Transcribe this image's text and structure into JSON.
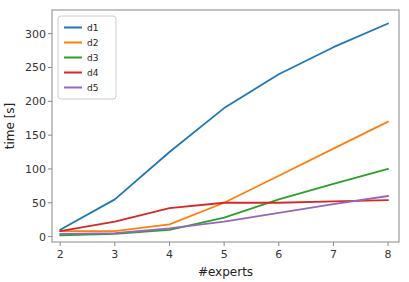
{
  "chart_data": {
    "type": "line",
    "xlabel": "#experts",
    "ylabel": "time [s]",
    "x": [
      2,
      3,
      4,
      5,
      6,
      7,
      8
    ],
    "series": [
      {
        "name": "d1",
        "color": "#1f77b4",
        "values": [
          10,
          55,
          125,
          190,
          240,
          280,
          315
        ]
      },
      {
        "name": "d2",
        "color": "#ff7f0e",
        "values": [
          8,
          8,
          18,
          50,
          90,
          130,
          170
        ]
      },
      {
        "name": "d3",
        "color": "#2ca02c",
        "values": [
          2,
          4,
          10,
          28,
          55,
          78,
          100
        ]
      },
      {
        "name": "d4",
        "color": "#d62728",
        "values": [
          8,
          22,
          42,
          50,
          50,
          52,
          54
        ]
      },
      {
        "name": "d5",
        "color": "#9467bd",
        "values": [
          4,
          5,
          12,
          22,
          35,
          48,
          60
        ]
      }
    ],
    "xlim": [
      1.85,
      8.2
    ],
    "ylim": [
      -8,
      335
    ],
    "xticks": [
      2,
      3,
      4,
      5,
      6,
      7,
      8
    ],
    "yticks": [
      0,
      50,
      100,
      150,
      200,
      250,
      300
    ],
    "grid": false,
    "legend": "upper left"
  }
}
